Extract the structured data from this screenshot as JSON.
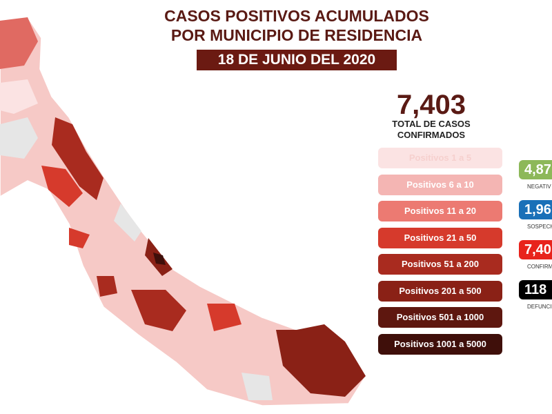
{
  "header": {
    "title_lines": [
      "CASOS POSITIVOS ACUMULADOS",
      "POR MUNICIPIO DE RESIDENCIA"
    ],
    "date": "18 DE JUNIO DEL 2020"
  },
  "total": {
    "value": "7,403",
    "label_lines": [
      "TOTAL DE CASOS",
      "CONFIRMADOS"
    ]
  },
  "legend": {
    "items": [
      "Positivos 1 a 5",
      "Positivos 6 a 10",
      "Positivos 11 a 20",
      "Positivos 21 a 50",
      "Positivos 51 a 200",
      "Positivos 201 a 500",
      "Positivos 501 a 1000",
      "Positivos 1001 a 5000"
    ]
  },
  "stats": [
    {
      "value": "4,87",
      "label": "NEGATIV"
    },
    {
      "value": "1,96",
      "label": "SOSPECH"
    },
    {
      "value": "7,40",
      "label": "CONFIRM"
    },
    {
      "value": "118",
      "label": "DEFUNCI"
    }
  ]
}
